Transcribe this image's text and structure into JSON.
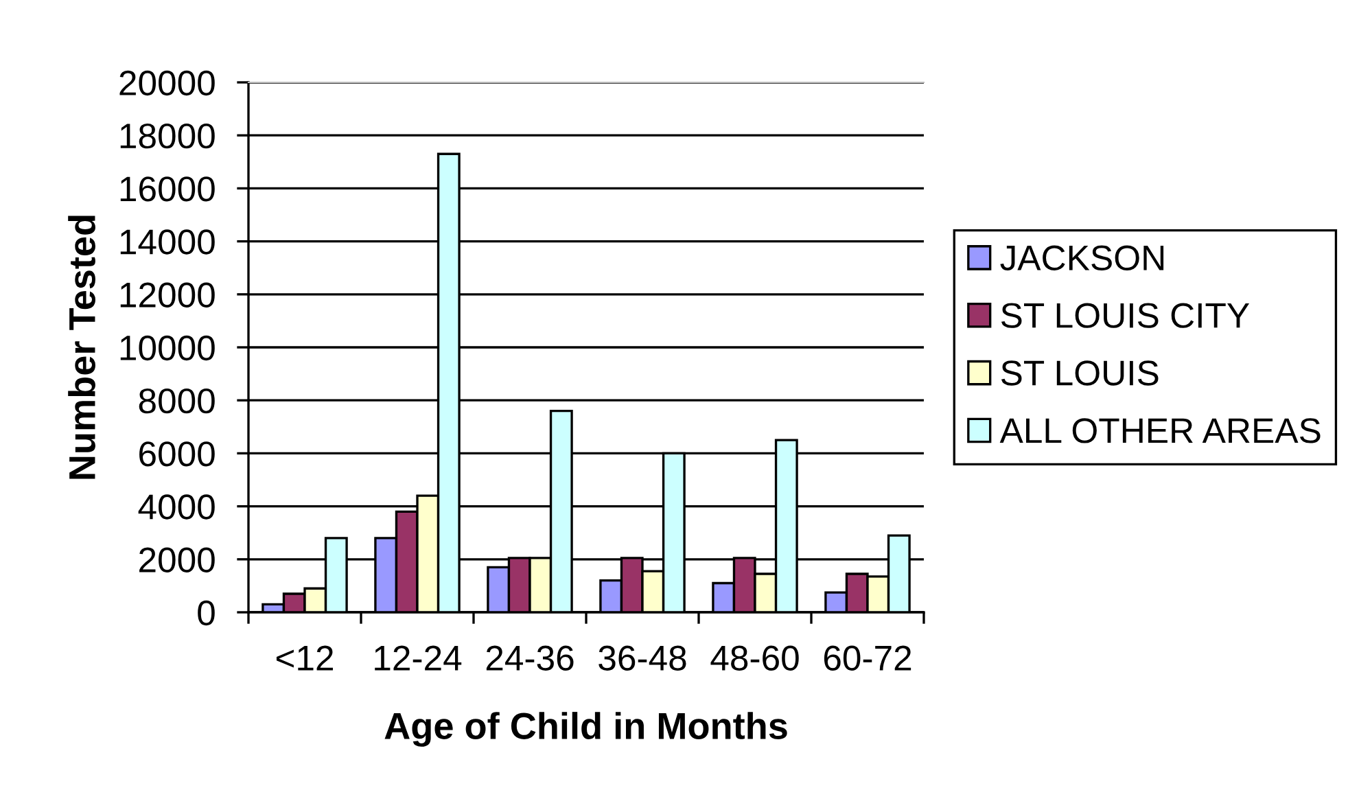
{
  "chart_data": {
    "type": "bar",
    "xlabel": "Age of Child in Months",
    "ylabel": "Number Tested",
    "categories": [
      "<12",
      "12-24",
      "24-36",
      "36-48",
      "48-60",
      "60-72"
    ],
    "series": [
      {
        "name": "JACKSON",
        "color": "#9999ff",
        "values": [
          300,
          2800,
          1700,
          1200,
          1100,
          750
        ]
      },
      {
        "name": "ST LOUIS CITY",
        "color": "#993366",
        "values": [
          700,
          3800,
          2050,
          2050,
          2050,
          1450
        ]
      },
      {
        "name": "ST LOUIS",
        "color": "#ffffcc",
        "values": [
          900,
          4400,
          2050,
          1550,
          1450,
          1350
        ]
      },
      {
        "name": "ALL OTHER AREAS",
        "color": "#ccffff",
        "values": [
          2800,
          17300,
          7600,
          6000,
          6500,
          2900
        ]
      }
    ],
    "ylim": [
      0,
      20000
    ],
    "yticks": [
      0,
      2000,
      4000,
      6000,
      8000,
      10000,
      12000,
      14000,
      16000,
      18000,
      20000
    ],
    "grid": "y",
    "legend": "right"
  }
}
